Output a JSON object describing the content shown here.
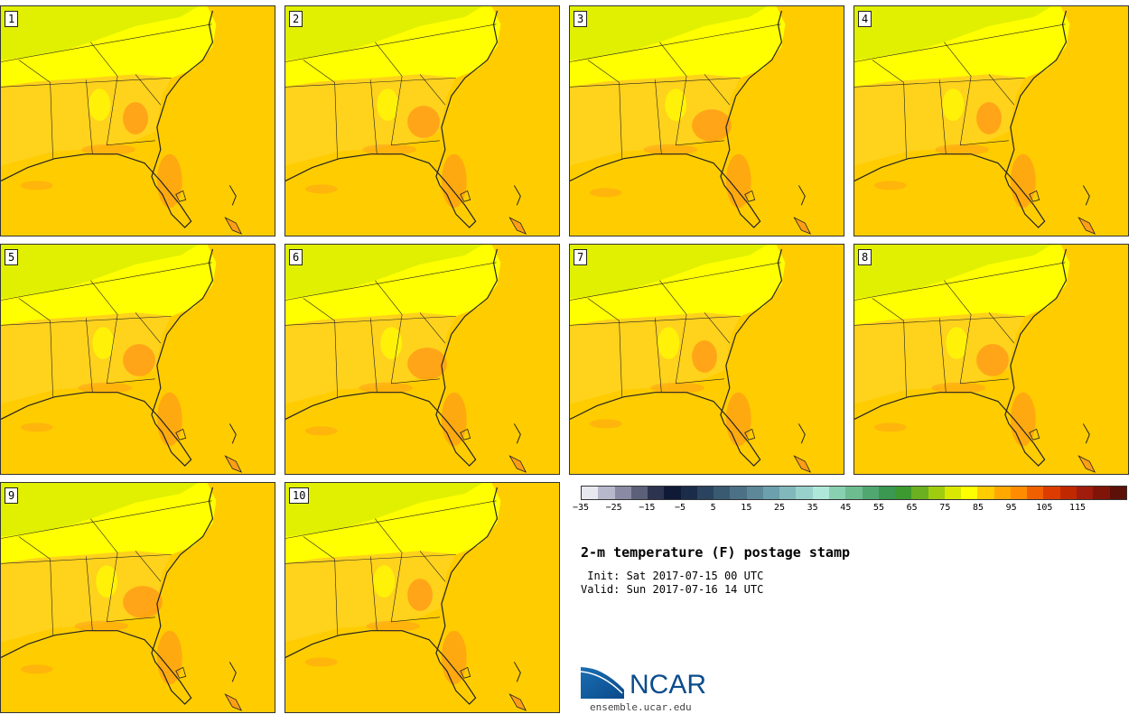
{
  "panels": [
    {
      "label": "1"
    },
    {
      "label": "2"
    },
    {
      "label": "3"
    },
    {
      "label": "4"
    },
    {
      "label": "5"
    },
    {
      "label": "6"
    },
    {
      "label": "7"
    },
    {
      "label": "8"
    },
    {
      "label": "9"
    },
    {
      "label": "10"
    }
  ],
  "colorbar": {
    "colors": [
      "#e8e8f0",
      "#b8b8cc",
      "#8a8aa4",
      "#5c6078",
      "#2c3450",
      "#0e1a36",
      "#1a2c4a",
      "#2a4460",
      "#3a5a72",
      "#4c7086",
      "#5c8898",
      "#6ca0ac",
      "#80b8bc",
      "#98d0cc",
      "#aee8d8",
      "#88d0b0",
      "#6cbc90",
      "#50a870",
      "#3a9850",
      "#3c9a30",
      "#6ab020",
      "#a0cc10",
      "#d8e800",
      "#ffff00",
      "#ffcc00",
      "#ffa800",
      "#ff8c00",
      "#f06000",
      "#dc3c00",
      "#c02800",
      "#a01c0c",
      "#801408",
      "#5c1008"
    ],
    "tick_labels": [
      "−35",
      "−25",
      "−15",
      "−5",
      "5",
      "15",
      "25",
      "35",
      "45",
      "55",
      "65",
      "75",
      "85",
      "95",
      "105",
      "115"
    ]
  },
  "title": "2-m temperature (F) postage stamp",
  "init_text": " Init: Sat 2017-07-15 00 UTC",
  "valid_text": "Valid: Sun 2017-07-16 14 UTC",
  "logo": {
    "text": "NCAR",
    "url": "ensemble.ucar.edu"
  },
  "colors": {
    "ocean": "#ffcc00",
    "warm_land": "#ff9e16",
    "mid_land": "#ffff00",
    "cool_land": "#e0f000",
    "border": "#222222"
  }
}
